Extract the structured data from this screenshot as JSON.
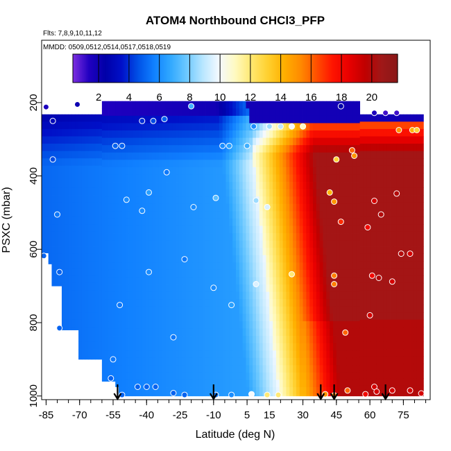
{
  "chart_data": {
    "type": "heatmap",
    "title": "ATOM4 Northbound CHCl3_PFP",
    "subtitle_flights": "Flts: 7,8,9,10,11,12",
    "subtitle_dates": "MMDD: 0509,0512,0514,0517,0518,0519",
    "xlabel": "Latitude (deg N)",
    "ylabel": "PSXC (mbar)",
    "xlim": [
      -87,
      87
    ],
    "ylim": [
      1010,
      30
    ],
    "x_ticks": [
      -85,
      -70,
      -55,
      -40,
      -25,
      -10,
      5,
      15,
      30,
      45,
      60,
      75
    ],
    "x_tick_labels": [
      "-85",
      "-70",
      "-55",
      "-40",
      "-25",
      "-10",
      "5",
      "15",
      "30",
      "45",
      "60",
      "75"
    ],
    "y_ticks": [
      200,
      400,
      600,
      800,
      1000
    ],
    "y_tick_labels": [
      "200",
      "400",
      "600",
      "800",
      "1000"
    ],
    "colorbar": {
      "min": 0.3,
      "max": 21.7,
      "ticks": [
        2,
        4,
        6,
        8,
        10,
        12,
        14,
        16,
        18,
        20
      ],
      "tick_labels": [
        "2",
        "4",
        "6",
        "8",
        "10",
        "12",
        "14",
        "16",
        "18",
        "20"
      ],
      "colors": [
        "#7d2fe0",
        "#2000c0",
        "#0000a8",
        "#0010c8",
        "#0050e6",
        "#1080ff",
        "#30a8ff",
        "#6cc8ff",
        "#b8e6ff",
        "#f4f9ff",
        "#fffac0",
        "#ffe870",
        "#ffd030",
        "#ffb000",
        "#ff8c00",
        "#ff5000",
        "#ff1400",
        "#e80000",
        "#c00000",
        "#a01818",
        "#8a1818"
      ]
    },
    "profile_arrows_latitude": [
      -53,
      -10,
      38,
      44,
      67
    ],
    "samples": [
      [
        -85,
        212,
        1.5
      ],
      [
        -71,
        205,
        2.0
      ],
      [
        -82,
        250,
        3
      ],
      [
        -42,
        250,
        4
      ],
      [
        -37,
        250,
        4.5
      ],
      [
        -32,
        245,
        5
      ],
      [
        -20,
        210,
        7
      ],
      [
        47,
        210,
        2.5
      ],
      [
        62,
        228,
        1.5
      ],
      [
        67,
        228,
        1
      ],
      [
        72,
        228,
        1
      ],
      [
        8,
        265,
        6
      ],
      [
        15,
        265,
        8.5
      ],
      [
        20,
        265,
        9
      ],
      [
        25,
        265,
        10
      ],
      [
        30,
        265,
        11
      ],
      [
        73,
        275,
        15
      ],
      [
        79,
        275,
        14
      ],
      [
        81,
        275,
        13
      ],
      [
        -51,
        318,
        5
      ],
      [
        -54,
        318,
        5
      ],
      [
        -6,
        318,
        6
      ],
      [
        -3,
        318,
        6.5
      ],
      [
        5,
        318,
        7
      ],
      [
        52,
        330,
        16
      ],
      [
        53,
        345,
        15
      ],
      [
        45,
        355,
        13
      ],
      [
        -82,
        355,
        4.5
      ],
      [
        -31,
        390,
        5.5
      ],
      [
        -49,
        465,
        6
      ],
      [
        -39,
        445,
        6.5
      ],
      [
        -9,
        460,
        7.5
      ],
      [
        9,
        467,
        8.5
      ],
      [
        14,
        485,
        9.5
      ],
      [
        -19,
        485,
        6
      ],
      [
        -42,
        495,
        6
      ],
      [
        -80,
        505,
        5.5
      ],
      [
        42,
        445,
        14
      ],
      [
        44,
        470,
        15
      ],
      [
        62,
        468,
        19
      ],
      [
        65,
        505,
        20
      ],
      [
        72,
        448,
        20
      ],
      [
        47,
        525,
        17
      ],
      [
        59,
        540,
        18
      ],
      [
        -86,
        618,
        5
      ],
      [
        -23,
        627,
        5.5
      ],
      [
        -39,
        662,
        6
      ],
      [
        -79,
        662,
        5
      ],
      [
        -10,
        705,
        6
      ],
      [
        9,
        695,
        9.5
      ],
      [
        25,
        668,
        12
      ],
      [
        44,
        672,
        15.5
      ],
      [
        44,
        695,
        15.5
      ],
      [
        61,
        672,
        18
      ],
      [
        64,
        678,
        20
      ],
      [
        70,
        688,
        19
      ],
      [
        74,
        612,
        20
      ],
      [
        78,
        612,
        19
      ],
      [
        -52,
        752,
        5.5
      ],
      [
        -2,
        752,
        6.5
      ],
      [
        60,
        780,
        19
      ],
      [
        -79,
        815,
        5
      ],
      [
        -28,
        840,
        5.5
      ],
      [
        49,
        827,
        16
      ],
      [
        -55,
        900,
        5.5
      ],
      [
        -56,
        952,
        5
      ],
      [
        -44,
        975,
        5
      ],
      [
        -40,
        975,
        5
      ],
      [
        -36,
        975,
        5
      ],
      [
        -28,
        992,
        5
      ],
      [
        -23,
        997,
        5
      ],
      [
        -51,
        997,
        5
      ],
      [
        -9,
        997,
        5.5
      ],
      [
        -2,
        997,
        6
      ],
      [
        7,
        995,
        10
      ],
      [
        14,
        997,
        12
      ],
      [
        19,
        997,
        12
      ],
      [
        40,
        995,
        15
      ],
      [
        44,
        998,
        15.5
      ],
      [
        50,
        985,
        16
      ],
      [
        58,
        995,
        18
      ],
      [
        62,
        975,
        19
      ],
      [
        63,
        988,
        19
      ],
      [
        70,
        985,
        19
      ],
      [
        78,
        985,
        19
      ],
      [
        83,
        993,
        19
      ]
    ]
  }
}
